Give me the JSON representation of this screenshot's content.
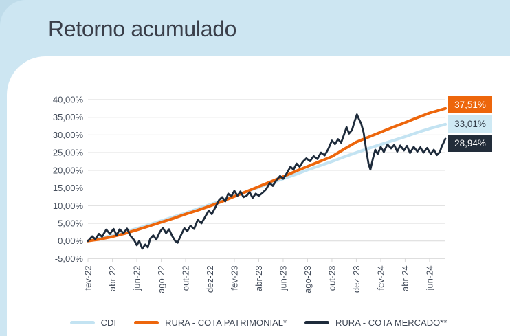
{
  "header": {
    "title": "Retorno acumulado"
  },
  "chart_data": {
    "type": "line",
    "title": "Retorno acumulado",
    "grid": true,
    "y_axis": {
      "min": -5,
      "max": 40,
      "step": 5,
      "tick_values": [
        40,
        35,
        30,
        25,
        20,
        15,
        10,
        5,
        0,
        -5
      ],
      "tick_labels": [
        "40,00%",
        "35,00%",
        "30,00%",
        "25,00%",
        "20,00%",
        "15,00%",
        "10,00%",
        "5,00%",
        "0,00%",
        "-5,00%"
      ]
    },
    "x_axis": {
      "tick_labels": [
        "fev-22",
        "abr-22",
        "jun-22",
        "ago-22",
        "out-22",
        "dez-22",
        "fev-23",
        "abr-23",
        "jun-23",
        "ago-23",
        "out-23",
        "dez-23",
        "fev-24",
        "abr-24",
        "jun-24"
      ],
      "months_per_tick": 2,
      "total_months": 29.3
    },
    "series": [
      {
        "name": "CDI",
        "color": "#c3e3f2",
        "width": 4.2,
        "points": [
          [
            0,
            0
          ],
          [
            1,
            0.76
          ],
          [
            2,
            1.6
          ],
          [
            3,
            2.5
          ],
          [
            4,
            3.5
          ],
          [
            5,
            4.6
          ],
          [
            6,
            5.7
          ],
          [
            7,
            6.8
          ],
          [
            8,
            7.9
          ],
          [
            9,
            9.1
          ],
          [
            10,
            10.3
          ],
          [
            11,
            11.5
          ],
          [
            12,
            12.7
          ],
          [
            13,
            14.0
          ],
          [
            14,
            15.2
          ],
          [
            15,
            16.4
          ],
          [
            16,
            17.6
          ],
          [
            17,
            18.8
          ],
          [
            18,
            20.1
          ],
          [
            19,
            21.3
          ],
          [
            20,
            22.5
          ],
          [
            21,
            23.8
          ],
          [
            22,
            25.0
          ],
          [
            23,
            26.2
          ],
          [
            24,
            27.3
          ],
          [
            25,
            28.4
          ],
          [
            26,
            29.5
          ],
          [
            27,
            30.7
          ],
          [
            28,
            31.8
          ],
          [
            29.3,
            33.01
          ]
        ]
      },
      {
        "name": "RURA - COTA PATRIMONIAL*",
        "color": "#ed660c",
        "width": 4,
        "points": [
          [
            0,
            0
          ],
          [
            1,
            0.5
          ],
          [
            2,
            1.2
          ],
          [
            3,
            2.1
          ],
          [
            4,
            3.1
          ],
          [
            5,
            4.2
          ],
          [
            6,
            5.3
          ],
          [
            7,
            6.4
          ],
          [
            8,
            7.6
          ],
          [
            9,
            8.7
          ],
          [
            10,
            9.9
          ],
          [
            11,
            11.2
          ],
          [
            12,
            12.6
          ],
          [
            13,
            14.0
          ],
          [
            14,
            15.4
          ],
          [
            15,
            16.8
          ],
          [
            16,
            18.2
          ],
          [
            17,
            19.7
          ],
          [
            18,
            21.1
          ],
          [
            19,
            22.5
          ],
          [
            20,
            23.9
          ],
          [
            21,
            26.0
          ],
          [
            22,
            28.0
          ],
          [
            23,
            29.4
          ],
          [
            24,
            30.8
          ],
          [
            25,
            32.2
          ],
          [
            26,
            33.5
          ],
          [
            27,
            34.9
          ],
          [
            28,
            36.2
          ],
          [
            29.3,
            37.51
          ]
        ]
      },
      {
        "name": "RURA - COTA MERCADO**",
        "color": "#1e2b3b",
        "width": 2.8,
        "points": [
          [
            0,
            0
          ],
          [
            0.35,
            1.3
          ],
          [
            0.6,
            0.5
          ],
          [
            0.9,
            2.0
          ],
          [
            1.15,
            1.2
          ],
          [
            1.5,
            3.2
          ],
          [
            1.8,
            2.0
          ],
          [
            2.1,
            3.4
          ],
          [
            2.35,
            1.6
          ],
          [
            2.6,
            3.3
          ],
          [
            2.9,
            2.2
          ],
          [
            3.2,
            3.5
          ],
          [
            3.5,
            1.4
          ],
          [
            3.8,
            0.2
          ],
          [
            4.0,
            -1.2
          ],
          [
            4.2,
            0.0
          ],
          [
            4.45,
            -2.2
          ],
          [
            4.7,
            -1.0
          ],
          [
            4.9,
            -1.8
          ],
          [
            5.1,
            0.6
          ],
          [
            5.35,
            1.6
          ],
          [
            5.6,
            0.4
          ],
          [
            5.9,
            2.6
          ],
          [
            6.15,
            3.7
          ],
          [
            6.4,
            2.2
          ],
          [
            6.65,
            3.3
          ],
          [
            6.9,
            1.4
          ],
          [
            7.15,
            0.0
          ],
          [
            7.35,
            -0.5
          ],
          [
            7.6,
            1.5
          ],
          [
            7.9,
            3.6
          ],
          [
            8.15,
            2.8
          ],
          [
            8.4,
            4.3
          ],
          [
            8.7,
            3.4
          ],
          [
            9.0,
            6.0
          ],
          [
            9.3,
            5.0
          ],
          [
            9.6,
            6.8
          ],
          [
            9.9,
            8.6
          ],
          [
            10.15,
            7.6
          ],
          [
            10.45,
            9.6
          ],
          [
            10.75,
            11.6
          ],
          [
            11.0,
            12.4
          ],
          [
            11.25,
            11.2
          ],
          [
            11.5,
            13.4
          ],
          [
            11.75,
            12.6
          ],
          [
            12.0,
            14.2
          ],
          [
            12.25,
            12.8
          ],
          [
            12.5,
            14.0
          ],
          [
            12.75,
            12.4
          ],
          [
            13.0,
            12.8
          ],
          [
            13.25,
            13.8
          ],
          [
            13.5,
            12.2
          ],
          [
            13.75,
            13.4
          ],
          [
            14.0,
            12.8
          ],
          [
            14.3,
            13.6
          ],
          [
            14.6,
            14.6
          ],
          [
            14.9,
            16.4
          ],
          [
            15.15,
            15.6
          ],
          [
            15.45,
            17.2
          ],
          [
            15.75,
            18.4
          ],
          [
            16.0,
            17.6
          ],
          [
            16.3,
            19.2
          ],
          [
            16.6,
            21.0
          ],
          [
            16.85,
            20.2
          ],
          [
            17.1,
            21.9
          ],
          [
            17.35,
            21.0
          ],
          [
            17.6,
            22.4
          ],
          [
            17.9,
            23.4
          ],
          [
            18.2,
            22.6
          ],
          [
            18.5,
            24.0
          ],
          [
            18.8,
            23.2
          ],
          [
            19.1,
            25.0
          ],
          [
            19.4,
            24.2
          ],
          [
            19.7,
            26.0
          ],
          [
            20.0,
            28.4
          ],
          [
            20.25,
            27.4
          ],
          [
            20.5,
            28.8
          ],
          [
            20.75,
            27.8
          ],
          [
            21.0,
            30.2
          ],
          [
            21.2,
            32.2
          ],
          [
            21.4,
            30.4
          ],
          [
            21.65,
            31.4
          ],
          [
            21.85,
            33.8
          ],
          [
            22.05,
            35.8
          ],
          [
            22.2,
            34.6
          ],
          [
            22.4,
            33.2
          ],
          [
            22.6,
            30.6
          ],
          [
            22.8,
            26.0
          ],
          [
            23.0,
            21.8
          ],
          [
            23.15,
            20.2
          ],
          [
            23.35,
            23.2
          ],
          [
            23.55,
            25.8
          ],
          [
            23.75,
            24.6
          ],
          [
            24.0,
            26.6
          ],
          [
            24.25,
            25.2
          ],
          [
            24.55,
            27.3
          ],
          [
            24.85,
            26.2
          ],
          [
            25.1,
            27.2
          ],
          [
            25.35,
            25.3
          ],
          [
            25.6,
            27.0
          ],
          [
            25.9,
            25.6
          ],
          [
            26.15,
            26.9
          ],
          [
            26.4,
            24.9
          ],
          [
            26.7,
            26.6
          ],
          [
            27.0,
            25.3
          ],
          [
            27.25,
            26.5
          ],
          [
            27.5,
            25.0
          ],
          [
            27.8,
            26.3
          ],
          [
            28.1,
            24.6
          ],
          [
            28.35,
            25.8
          ],
          [
            28.6,
            24.3
          ],
          [
            28.85,
            25.2
          ],
          [
            29.0,
            26.8
          ],
          [
            29.15,
            27.8
          ],
          [
            29.3,
            28.94
          ]
        ]
      }
    ],
    "end_labels": [
      {
        "text": "37,51%",
        "bg": "#ed660c",
        "fg": "#ffffff"
      },
      {
        "text": "33,01%",
        "bg": "#cee9f4",
        "fg": "#2f3844"
      },
      {
        "text": "28,94%",
        "bg": "#222d3a",
        "fg": "#ffffff"
      }
    ],
    "legend_position": "bottom"
  },
  "legend": {
    "items": [
      {
        "label": "CDI",
        "color": "#c3e3f2"
      },
      {
        "label": "RURA - COTA PATRIMONIAL*",
        "color": "#ed660c"
      },
      {
        "label": "RURA - COTA MERCADO**",
        "color": "#1e2b3b"
      }
    ]
  },
  "style": {
    "page_bg": "#bfdcea",
    "panel_bg": "#cde6f2",
    "card_bg": "#ffffff",
    "grid_color": "#d9d9d9",
    "axis_text_color": "#434c5a",
    "title_color": "#3a3f4a"
  }
}
